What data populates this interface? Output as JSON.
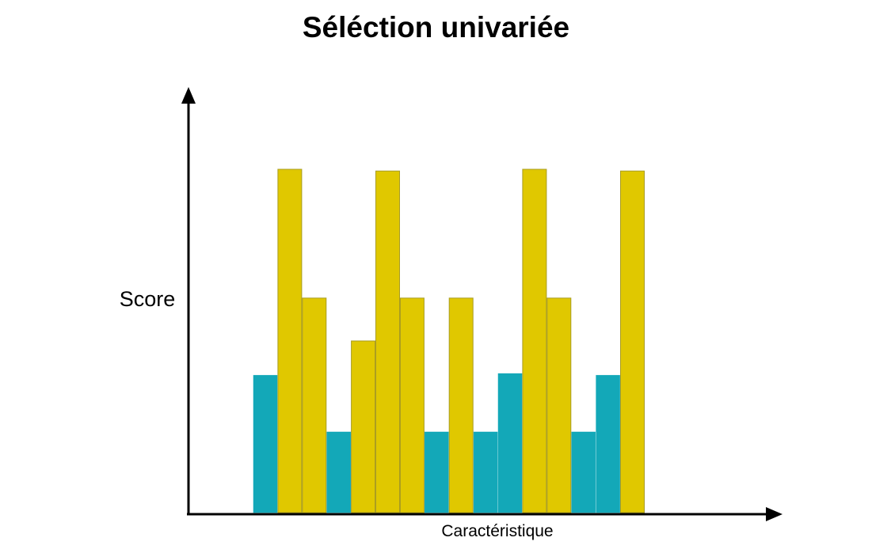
{
  "chart_data": {
    "type": "bar",
    "title": "Séléction univariée",
    "xlabel": "Caractéristique",
    "ylabel": "Score",
    "ylim": [
      0,
      100
    ],
    "grid": false,
    "legend": "none",
    "colors": {
      "selected": "#e0c800",
      "not_selected": "#13a8b8",
      "selected_border": "#a89c22",
      "axis": "#000000"
    },
    "bars": [
      {
        "value": 40,
        "status": "not_selected"
      },
      {
        "value": 100,
        "status": "selected"
      },
      {
        "value": 62.5,
        "status": "selected"
      },
      {
        "value": 23.5,
        "status": "not_selected"
      },
      {
        "value": 50,
        "status": "selected"
      },
      {
        "value": 99.5,
        "status": "selected"
      },
      {
        "value": 62.5,
        "status": "selected"
      },
      {
        "value": 23.5,
        "status": "not_selected"
      },
      {
        "value": 62.5,
        "status": "selected"
      },
      {
        "value": 23.5,
        "status": "not_selected"
      },
      {
        "value": 40.5,
        "status": "not_selected"
      },
      {
        "value": 100,
        "status": "selected"
      },
      {
        "value": 62.5,
        "status": "selected"
      },
      {
        "value": 23.5,
        "status": "not_selected"
      },
      {
        "value": 40,
        "status": "not_selected"
      },
      {
        "value": 99.5,
        "status": "selected"
      }
    ]
  }
}
